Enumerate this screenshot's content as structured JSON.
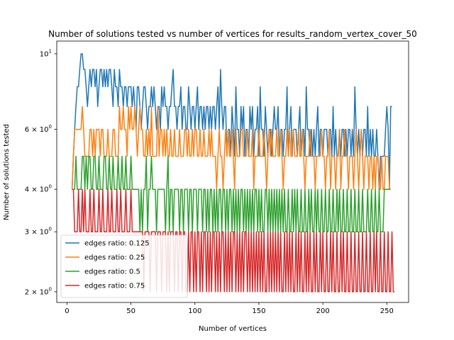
{
  "chart_data": {
    "type": "line",
    "title": "Number of solutions tested vs number of vertices for results_random_vertex_cover_50",
    "xlabel": "Number of vertices",
    "ylabel": "Number of solutions tested",
    "xlim": [
      -8,
      267
    ],
    "ylim": [
      1.86,
      10.9
    ],
    "yscale": "log",
    "grid": false,
    "legend_position": "lower-left",
    "x_ticks": [
      {
        "value": 0,
        "label": "0"
      },
      {
        "value": 50,
        "label": "50"
      },
      {
        "value": 100,
        "label": "100"
      },
      {
        "value": 150,
        "label": "150"
      },
      {
        "value": 200,
        "label": "200"
      },
      {
        "value": 250,
        "label": "250"
      }
    ],
    "y_ticks": [
      {
        "value": 2,
        "base": "2",
        "mult": " × ",
        "exp_base": "10",
        "exp": "0"
      },
      {
        "value": 3,
        "base": "3",
        "mult": " × ",
        "exp_base": "10",
        "exp": "0"
      },
      {
        "value": 4,
        "base": "4",
        "mult": " × ",
        "exp_base": "10",
        "exp": "0"
      },
      {
        "value": 6,
        "base": "6",
        "mult": " × ",
        "exp_base": "10",
        "exp": "0"
      },
      {
        "value": 10,
        "base": "",
        "mult": "",
        "exp_base": "10",
        "exp": "1"
      }
    ],
    "x_start": 4,
    "x_step": 1,
    "series": [
      {
        "name": "edges ratio: 0.125",
        "color": "#1f77b4",
        "values": [
          4,
          5,
          6,
          7,
          8,
          8,
          9,
          10,
          10,
          9,
          9,
          8,
          7,
          8,
          9,
          8,
          9,
          9,
          8,
          9,
          7,
          8,
          9,
          9,
          8,
          9,
          8,
          9,
          8,
          9,
          9,
          8,
          7,
          9,
          8,
          8,
          7,
          9,
          8,
          8,
          7,
          8,
          8,
          7,
          8,
          8,
          8,
          7,
          8,
          7,
          6,
          8,
          8,
          7,
          6,
          7,
          8,
          8,
          7,
          6,
          7,
          7,
          8,
          7,
          8,
          7,
          6,
          7,
          7,
          6,
          8,
          7,
          8,
          7,
          7,
          6,
          7,
          7,
          8,
          9,
          7,
          7,
          6,
          7,
          7,
          8,
          6,
          7,
          7,
          6,
          6,
          8,
          7,
          6,
          7,
          7,
          6,
          7,
          8,
          6,
          7,
          7,
          6,
          7,
          6,
          7,
          7,
          6,
          7,
          6,
          7,
          7,
          6,
          7,
          8,
          6,
          9,
          7,
          6,
          7,
          7,
          5,
          6,
          6,
          5,
          7,
          6,
          5,
          8,
          6,
          6,
          5,
          7,
          6,
          7,
          5,
          6,
          6,
          5,
          7,
          6,
          7,
          5,
          6,
          6,
          7,
          5,
          8,
          6,
          6,
          5,
          7,
          6,
          5,
          6,
          6,
          5,
          6,
          7,
          6,
          6,
          7,
          5,
          6,
          6,
          5,
          6,
          6,
          8,
          5,
          6,
          7,
          5,
          6,
          6,
          6,
          5,
          6,
          7,
          5,
          6,
          6,
          5,
          8,
          6,
          6,
          5,
          6,
          5,
          6,
          5,
          6,
          7,
          5,
          6,
          6,
          5,
          6,
          6,
          6,
          5,
          6,
          6,
          5,
          7,
          5,
          6,
          5,
          5,
          6,
          5,
          6,
          6,
          5,
          6,
          5,
          6,
          6,
          5,
          6,
          5,
          8,
          6,
          5,
          6,
          5,
          6,
          5,
          6,
          6,
          5,
          7,
          5,
          6,
          5,
          6,
          5,
          5,
          6,
          5,
          4,
          5,
          5,
          5,
          5,
          6,
          7,
          6,
          4,
          7,
          7
        ]
      },
      {
        "name": "edges ratio: 0.25",
        "color": "#ff7f0e",
        "values": [
          4,
          5,
          6,
          6,
          6,
          6,
          6,
          6,
          7,
          6,
          5,
          5,
          5,
          5,
          6,
          6,
          5,
          6,
          5,
          6,
          6,
          6,
          5,
          6,
          6,
          5,
          5,
          5,
          6,
          5,
          5,
          5,
          6,
          6,
          5,
          5,
          5,
          7,
          6,
          6,
          7,
          6,
          6,
          5,
          7,
          6,
          7,
          6,
          6,
          7,
          6,
          5,
          6,
          7,
          6,
          6,
          5,
          5,
          6,
          5,
          6,
          5,
          7,
          5,
          5,
          5,
          5,
          7,
          5,
          6,
          6,
          5,
          6,
          5,
          6,
          5,
          5,
          6,
          5,
          5,
          6,
          5,
          5,
          5,
          6,
          5,
          5,
          5,
          6,
          6,
          5,
          6,
          5,
          5,
          6,
          5,
          6,
          6,
          5,
          5,
          6,
          5,
          5,
          6,
          5,
          5,
          5,
          6,
          5,
          6,
          5,
          5,
          5,
          4,
          5,
          6,
          5,
          5,
          4,
          5,
          6,
          5,
          6,
          5,
          5,
          6,
          5,
          4,
          6,
          5,
          5,
          5,
          6,
          6,
          5,
          5,
          5,
          6,
          5,
          5,
          5,
          6,
          4,
          5,
          5,
          5,
          6,
          5,
          5,
          5,
          6,
          5,
          4,
          5,
          6,
          5,
          6,
          5,
          5,
          5,
          6,
          5,
          5,
          6,
          5,
          4,
          5,
          5,
          6,
          5,
          6,
          5,
          5,
          6,
          5,
          5,
          5,
          6,
          5,
          5,
          6,
          5,
          4,
          5,
          5,
          5,
          6,
          5,
          5,
          5,
          4,
          5,
          5,
          5,
          5,
          6,
          5,
          5,
          4,
          5,
          5,
          6,
          4,
          5,
          5,
          5,
          4,
          5,
          5,
          6,
          4,
          5,
          5,
          6,
          5,
          5,
          4,
          5,
          5,
          5,
          4,
          5,
          6,
          5,
          4,
          5,
          6,
          5,
          4,
          5,
          5,
          5,
          4,
          5,
          5,
          4,
          5,
          4,
          5,
          5,
          4,
          4,
          5,
          4,
          4,
          5,
          5,
          5,
          4,
          4
        ]
      },
      {
        "name": "edges ratio: 0.5",
        "color": "#2ca02c",
        "values": [
          4,
          4,
          4,
          5,
          4,
          4,
          4,
          4,
          5,
          5,
          4,
          5,
          4,
          5,
          5,
          4,
          4,
          5,
          5,
          4,
          4,
          5,
          4,
          4,
          4,
          5,
          5,
          4,
          4,
          5,
          4,
          4,
          5,
          4,
          4,
          4,
          5,
          4,
          4,
          5,
          4,
          4,
          5,
          4,
          4,
          4,
          5,
          4,
          4,
          4,
          4,
          4,
          4,
          3,
          4,
          3,
          4,
          4,
          5,
          3,
          4,
          4,
          5,
          4,
          4,
          4,
          3,
          4,
          4,
          4,
          4,
          4,
          4,
          3,
          4,
          5,
          3,
          4,
          4,
          3,
          4,
          4,
          4,
          4,
          3,
          4,
          4,
          3,
          4,
          4,
          4,
          3,
          4,
          4,
          3,
          4,
          4,
          4,
          3,
          4,
          4,
          4,
          3,
          4,
          4,
          3,
          4,
          3,
          4,
          4,
          3,
          4,
          3,
          4,
          3,
          4,
          4,
          3,
          4,
          4,
          3,
          4,
          3,
          4,
          4,
          3,
          4,
          3,
          4,
          3,
          4,
          3,
          4,
          4,
          3,
          4,
          3,
          4,
          3,
          4,
          3,
          4,
          3,
          4,
          4,
          3,
          4,
          3,
          4,
          3,
          3,
          4,
          4,
          3,
          4,
          3,
          4,
          3,
          4,
          3,
          4,
          3,
          4,
          3,
          4,
          3,
          4,
          3,
          3,
          4,
          3,
          3,
          4,
          3,
          4,
          3,
          4,
          3,
          3,
          4,
          3,
          3,
          4,
          3,
          3,
          4,
          3,
          4,
          3,
          3,
          4,
          3,
          4,
          3,
          3,
          4,
          3,
          3,
          4,
          3,
          3,
          4,
          3,
          3,
          4,
          3,
          3,
          4,
          3,
          4,
          3,
          3,
          4,
          3,
          3,
          4,
          3,
          3,
          4,
          3,
          3,
          4,
          3,
          3,
          4,
          3,
          3,
          4,
          3,
          3,
          3,
          4,
          3,
          3,
          4,
          3,
          3,
          4,
          3,
          3,
          4,
          3,
          3,
          3,
          4,
          4,
          4,
          4,
          4,
          4
        ]
      },
      {
        "name": "edges ratio: 0.75",
        "color": "#d62728",
        "values": [
          4,
          4,
          3,
          3,
          3,
          4,
          3,
          3,
          4,
          3,
          4,
          3,
          3,
          3,
          4,
          3,
          3,
          4,
          3,
          3,
          3,
          4,
          3,
          3,
          4,
          3,
          3,
          3,
          4,
          3,
          3,
          4,
          3,
          3,
          3,
          4,
          3,
          3,
          4,
          3,
          3,
          3,
          4,
          3,
          3,
          3,
          4,
          3,
          3,
          3,
          3,
          3,
          3,
          3,
          3,
          3,
          2,
          3,
          3,
          3,
          3,
          2,
          3,
          3,
          3,
          3,
          2,
          3,
          3,
          3,
          2,
          3,
          3,
          3,
          2,
          3,
          2,
          3,
          3,
          3,
          2,
          3,
          3,
          2,
          3,
          3,
          2,
          3,
          3,
          2,
          2,
          3,
          2,
          3,
          3,
          2,
          3,
          2,
          3,
          3,
          2,
          3,
          2,
          3,
          3,
          2,
          3,
          2,
          3,
          2,
          3,
          3,
          2,
          3,
          2,
          3,
          2,
          3,
          3,
          2,
          3,
          2,
          3,
          2,
          3,
          2,
          3,
          3,
          2,
          3,
          2,
          3,
          2,
          3,
          2,
          3,
          3,
          2,
          3,
          2,
          3,
          2,
          3,
          2,
          3,
          2,
          3,
          2,
          3,
          2,
          3,
          2,
          2,
          3,
          2,
          3,
          2,
          3,
          2,
          3,
          2,
          3,
          2,
          3,
          2,
          2,
          3,
          2,
          3,
          2,
          3,
          2,
          3,
          2,
          2,
          3,
          2,
          3,
          2,
          3,
          2,
          2,
          3,
          2,
          3,
          2,
          3,
          2,
          2,
          3,
          2,
          3,
          2,
          2,
          3,
          2,
          3,
          2,
          2,
          3,
          2,
          2,
          3,
          2,
          3,
          2,
          2,
          3,
          2,
          2,
          3,
          2,
          3,
          2,
          2,
          3,
          2,
          2,
          3,
          2,
          2,
          3,
          2,
          2,
          3,
          2,
          2,
          3,
          2,
          2,
          3,
          2,
          2,
          3,
          2,
          2,
          3,
          2,
          3,
          2,
          2,
          3,
          2,
          2,
          3,
          2,
          2,
          3,
          2,
          2,
          3,
          2,
          2
        ]
      }
    ]
  }
}
